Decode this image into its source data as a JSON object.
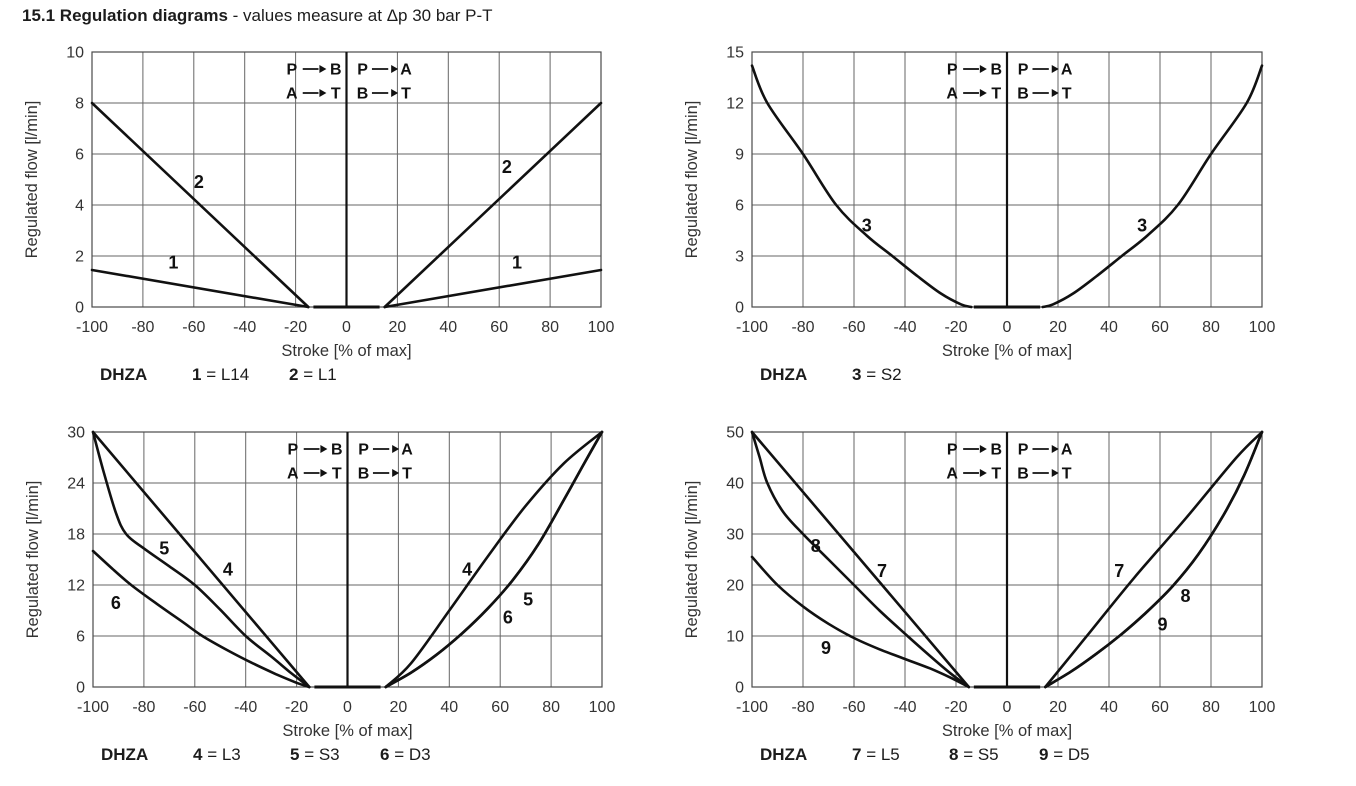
{
  "title": {
    "bold": "15.1 Regulation diagrams",
    "rest": " - values measure at Δp 30 bar P-T"
  },
  "colors": {
    "curve": "#111111",
    "grid": "#666666",
    "border": "#4a4a4a",
    "axis_emphasis": "#111111",
    "text": "#333333",
    "caption_text": "#1c1c1c"
  },
  "chart_data": [
    {
      "type": "line",
      "title": "DHZA 1 = L14, 2 = L1",
      "xlabel": "Stroke [% of max]",
      "ylabel": "Regulated flow [l/min]",
      "xlim": [
        -100,
        100
      ],
      "ylim": [
        0,
        10
      ],
      "x_ticks": [
        -100,
        -80,
        -60,
        -40,
        -20,
        0,
        20,
        40,
        60,
        80,
        100
      ],
      "y_ticks": [
        0,
        2,
        4,
        6,
        8,
        10
      ],
      "grid": true,
      "dead_band": [
        -13,
        13
      ],
      "routes": {
        "left": [
          {
            "from": "P",
            "to": "B"
          },
          {
            "from": "A",
            "to": "T"
          }
        ],
        "right": [
          {
            "from": "P",
            "to": "A"
          },
          {
            "from": "B",
            "to": "T"
          }
        ]
      },
      "caption": {
        "model": "DHZA",
        "entries": [
          {
            "num": "1",
            "val": "L14"
          },
          {
            "num": "2",
            "val": "L1"
          }
        ]
      },
      "series": [
        {
          "name": "1",
          "spool": "L14",
          "left": [
            [
              -100,
              1.45
            ],
            [
              -15,
              0
            ]
          ],
          "right": [
            [
              15,
              0
            ],
            [
              100,
              1.45
            ]
          ],
          "labels": [
            {
              "x": -68,
              "y": 1.75
            },
            {
              "x": 67,
              "y": 1.75
            }
          ]
        },
        {
          "name": "2",
          "spool": "L1",
          "left": [
            [
              -100,
              8
            ],
            [
              -15,
              0
            ]
          ],
          "right": [
            [
              15,
              0
            ],
            [
              100,
              8
            ]
          ],
          "labels": [
            {
              "x": -58,
              "y": 4.9
            },
            {
              "x": 63,
              "y": 5.5
            }
          ]
        }
      ]
    },
    {
      "type": "line",
      "title": "DHZA 3 = S2",
      "xlabel": "Stroke [% of max]",
      "ylabel": "Regulated flow [l/min]",
      "xlim": [
        -100,
        100
      ],
      "ylim": [
        0,
        15
      ],
      "x_ticks": [
        -100,
        -80,
        -60,
        -40,
        -20,
        0,
        20,
        40,
        60,
        80,
        100
      ],
      "y_ticks": [
        0,
        3,
        6,
        9,
        12,
        15
      ],
      "grid": true,
      "dead_band": [
        -13,
        13
      ],
      "routes": {
        "left": [
          {
            "from": "P",
            "to": "B"
          },
          {
            "from": "A",
            "to": "T"
          }
        ],
        "right": [
          {
            "from": "P",
            "to": "A"
          },
          {
            "from": "B",
            "to": "T"
          }
        ]
      },
      "caption": {
        "model": "DHZA",
        "entries": [
          {
            "num": "3",
            "val": "S2"
          }
        ]
      },
      "series": [
        {
          "name": "3",
          "spool": "S2",
          "left": [
            [
              -100,
              14.2
            ],
            [
              -94,
              12
            ],
            [
              -80,
              9
            ],
            [
              -67,
              6
            ],
            [
              -55,
              4.2
            ],
            [
              -45,
              3
            ],
            [
              -35,
              1.8
            ],
            [
              -26,
              0.8
            ],
            [
              -18,
              0.15
            ],
            [
              -14,
              0
            ]
          ],
          "right": [
            [
              14,
              0
            ],
            [
              18,
              0.15
            ],
            [
              26,
              0.8
            ],
            [
              35,
              1.8
            ],
            [
              45,
              3
            ],
            [
              55,
              4.2
            ],
            [
              67,
              6
            ],
            [
              80,
              9
            ],
            [
              94,
              12
            ],
            [
              100,
              14.2
            ]
          ],
          "labels": [
            {
              "x": -55,
              "y": 4.8
            },
            {
              "x": 53,
              "y": 4.8
            }
          ]
        }
      ]
    },
    {
      "type": "line",
      "title": "DHZA 4 = L3, 5 = S3, 6 = D3",
      "xlabel": "Stroke [% of max]",
      "ylabel": "Regulated flow [l/min]",
      "xlim": [
        -100,
        100
      ],
      "ylim": [
        0,
        30
      ],
      "x_ticks": [
        -100,
        -80,
        -60,
        -40,
        -20,
        0,
        20,
        40,
        60,
        80,
        100
      ],
      "y_ticks": [
        0,
        6,
        12,
        18,
        24,
        30
      ],
      "grid": true,
      "dead_band": [
        -13,
        13
      ],
      "routes": {
        "left": [
          {
            "from": "P",
            "to": "B"
          },
          {
            "from": "A",
            "to": "T"
          }
        ],
        "right": [
          {
            "from": "P",
            "to": "A"
          },
          {
            "from": "B",
            "to": "T"
          }
        ]
      },
      "caption": {
        "model": "DHZA",
        "entries": [
          {
            "num": "4",
            "val": "L3"
          },
          {
            "num": "5",
            "val": "S3"
          },
          {
            "num": "6",
            "val": "D3"
          }
        ]
      },
      "series": [
        {
          "name": "4",
          "spool": "L3",
          "left": [
            [
              -100,
              30
            ],
            [
              -15,
              0
            ]
          ],
          "right": [
            [
              15,
              0
            ],
            [
              25,
              2.8
            ],
            [
              40,
              9
            ],
            [
              55,
              15.3
            ],
            [
              70,
              21.3
            ],
            [
              85,
              26.3
            ],
            [
              100,
              30
            ]
          ],
          "labels": [
            {
              "x": -47,
              "y": 13.8
            },
            {
              "x": 47,
              "y": 13.8
            }
          ]
        },
        {
          "name": "5",
          "spool": "S3",
          "left": [
            [
              -100,
              30
            ],
            [
              -96,
              25.5
            ],
            [
              -91,
              20.5
            ],
            [
              -87,
              18
            ],
            [
              -80,
              16.3
            ],
            [
              -70,
              14.2
            ],
            [
              -60,
              12
            ],
            [
              -50,
              9.1
            ],
            [
              -40,
              6
            ],
            [
              -30,
              3.6
            ],
            [
              -22,
              1.6
            ],
            [
              -15,
              0
            ]
          ],
          "right": [
            [
              15,
              0
            ],
            [
              25,
              1.7
            ],
            [
              35,
              3.8
            ],
            [
              45,
              6.3
            ],
            [
              55,
              9.2
            ],
            [
              65,
              12.6
            ],
            [
              75,
              16.8
            ],
            [
              85,
              22
            ],
            [
              93,
              26.3
            ],
            [
              100,
              30
            ]
          ],
          "labels": [
            {
              "x": -72,
              "y": 16.3
            },
            {
              "x": 71,
              "y": 10.3
            }
          ]
        },
        {
          "name": "6",
          "spool": "D3",
          "left": [
            [
              -100,
              16
            ],
            [
              -92,
              13.8
            ],
            [
              -85,
              12
            ],
            [
              -75,
              9.8
            ],
            [
              -65,
              7.7
            ],
            [
              -57,
              6
            ],
            [
              -47,
              4.3
            ],
            [
              -38,
              2.9
            ],
            [
              -28,
              1.5
            ],
            [
              -20,
              0.5
            ],
            [
              -15,
              0
            ]
          ],
          "right": [
            [
              15,
              0
            ],
            [
              25,
              1.7
            ],
            [
              35,
              3.8
            ],
            [
              45,
              6.3
            ],
            [
              55,
              9.2
            ],
            [
              65,
              12.6
            ],
            [
              75,
              16.8
            ],
            [
              85,
              22
            ],
            [
              93,
              26.3
            ],
            [
              100,
              30
            ]
          ],
          "labels": [
            {
              "x": -91,
              "y": 9.9
            },
            {
              "x": 63,
              "y": 8.2
            }
          ]
        }
      ]
    },
    {
      "type": "line",
      "title": "DHZA 7 = L5, 8 = S5, 9 = D5",
      "xlabel": "Stroke [% of max]",
      "ylabel": "Regulated flow [l/min]",
      "xlim": [
        -100,
        100
      ],
      "ylim": [
        0,
        50
      ],
      "x_ticks": [
        -100,
        -80,
        -60,
        -40,
        -20,
        0,
        20,
        40,
        60,
        80,
        100
      ],
      "y_ticks": [
        0,
        10,
        20,
        30,
        40,
        50
      ],
      "grid": true,
      "dead_band": [
        -13,
        13
      ],
      "routes": {
        "left": [
          {
            "from": "P",
            "to": "B"
          },
          {
            "from": "A",
            "to": "T"
          }
        ],
        "right": [
          {
            "from": "P",
            "to": "A"
          },
          {
            "from": "B",
            "to": "T"
          }
        ]
      },
      "caption": {
        "model": "DHZA",
        "entries": [
          {
            "num": "7",
            "val": "L5"
          },
          {
            "num": "8",
            "val": "S5"
          },
          {
            "num": "9",
            "val": "D5"
          }
        ]
      },
      "series": [
        {
          "name": "7",
          "spool": "L5",
          "left": [
            [
              -100,
              50
            ],
            [
              -15,
              0
            ]
          ],
          "right": [
            [
              15,
              0
            ],
            [
              30,
              9.2
            ],
            [
              50,
              21.5
            ],
            [
              70,
              33
            ],
            [
              90,
              45
            ],
            [
              100,
              50
            ]
          ],
          "labels": [
            {
              "x": -49,
              "y": 22.7
            },
            {
              "x": 44,
              "y": 22.7
            }
          ]
        },
        {
          "name": "8",
          "spool": "S5",
          "left": [
            [
              -100,
              50
            ],
            [
              -97,
              45
            ],
            [
              -94,
              40
            ],
            [
              -88,
              34.5
            ],
            [
              -80,
              30
            ],
            [
              -70,
              25
            ],
            [
              -60,
              20
            ],
            [
              -50,
              15
            ],
            [
              -39,
              10
            ],
            [
              -30,
              6
            ],
            [
              -22,
              2.6
            ],
            [
              -15,
              0
            ]
          ],
          "right": [
            [
              15,
              0
            ],
            [
              25,
              3
            ],
            [
              35,
              6.5
            ],
            [
              45,
              10.4
            ],
            [
              55,
              14.8
            ],
            [
              65,
              19.8
            ],
            [
              75,
              26
            ],
            [
              85,
              33.8
            ],
            [
              93,
              41.5
            ],
            [
              100,
              50
            ]
          ],
          "labels": [
            {
              "x": -75,
              "y": 27.6
            },
            {
              "x": 70,
              "y": 17.8
            }
          ]
        },
        {
          "name": "9",
          "spool": "D5",
          "left": [
            [
              -100,
              25.5
            ],
            [
              -90,
              20
            ],
            [
              -80,
              15.8
            ],
            [
              -70,
              12.4
            ],
            [
              -60,
              9.6
            ],
            [
              -50,
              7.4
            ],
            [
              -40,
              5.5
            ],
            [
              -30,
              3.6
            ],
            [
              -22,
              1.8
            ],
            [
              -15,
              0
            ]
          ],
          "right": [
            [
              15,
              0
            ],
            [
              25,
              3
            ],
            [
              35,
              6.5
            ],
            [
              45,
              10.4
            ],
            [
              55,
              14.8
            ],
            [
              65,
              19.8
            ],
            [
              75,
              26
            ],
            [
              85,
              33.8
            ],
            [
              93,
              41.5
            ],
            [
              100,
              50
            ]
          ],
          "labels": [
            {
              "x": -71,
              "y": 7.6
            },
            {
              "x": 61,
              "y": 12.3
            }
          ]
        }
      ]
    }
  ]
}
